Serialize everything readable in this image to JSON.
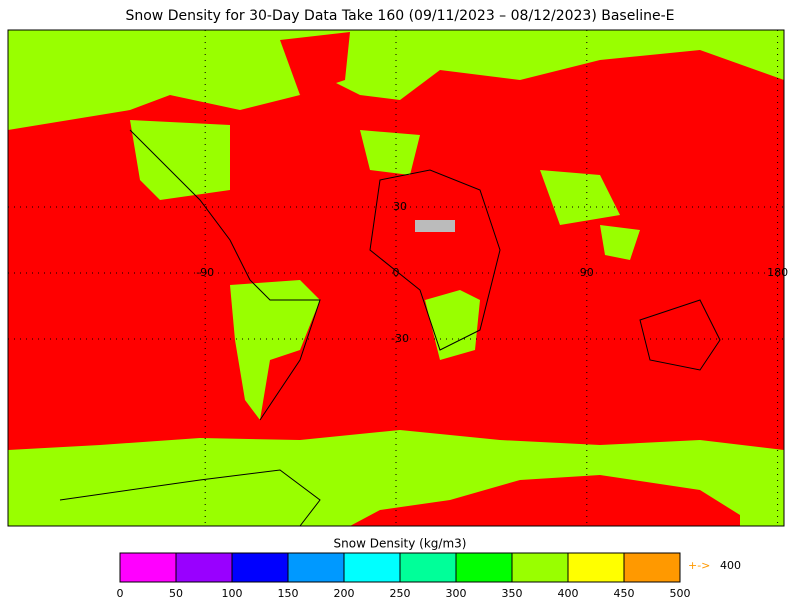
{
  "title": "Snow Density for 30-Day Data Take 160 (09/11/2023 – 08/12/2023) Baseline-E",
  "map": {
    "lat_labels": [
      30,
      0,
      -30
    ],
    "lon_labels": [
      -90,
      0,
      90,
      180
    ]
  },
  "colorbar": {
    "label": "Snow Density (kg/m3)",
    "ticks": [
      0,
      50,
      100,
      150,
      200,
      250,
      300,
      350,
      400,
      450,
      500
    ],
    "colors": [
      "#ff00ff",
      "#9900ff",
      "#0000ff",
      "#0099ff",
      "#00ffff",
      "#00ff99",
      "#00ff00",
      "#99ff00",
      "#ffff00",
      "#ff9900"
    ],
    "overflow_marker": "+->",
    "overflow_value": 400
  }
}
